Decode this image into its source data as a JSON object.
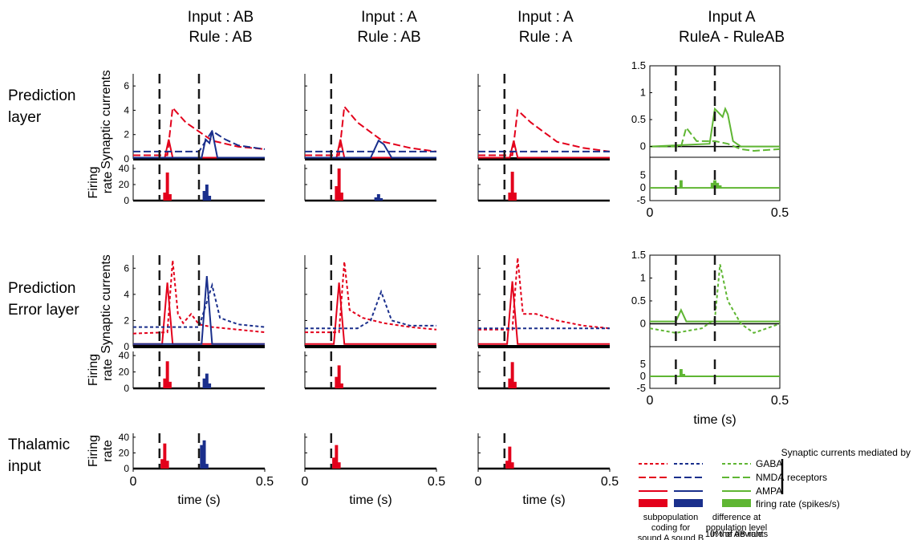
{
  "colors": {
    "red": "#e3001b",
    "blue": "#1a2f8c",
    "green": "#5fb633",
    "dashline": "#1a1a1a",
    "axis": "#000000"
  },
  "column_titles": [
    {
      "line1": "Input : AB",
      "line2": "Rule : AB"
    },
    {
      "line1": "Input : A",
      "line2": "Rule : AB"
    },
    {
      "line1": "Input : A",
      "line2": "Rule : A"
    },
    {
      "line1": "Input A",
      "line2": "RuleA - RuleAB"
    }
  ],
  "row_titles": [
    {
      "line1": "Prediction",
      "line2": "layer"
    },
    {
      "line1": "Prediction",
      "line2": "Error layer"
    },
    {
      "line1": "Thalamic",
      "line2": "input"
    }
  ],
  "axis_labels": {
    "synaptic_currents": "Synaptic currents",
    "firing_line1": "Firing",
    "firing_line2": "rate",
    "time": "time (s)"
  },
  "tick_labels": {
    "syn_y": [
      "0",
      "2",
      "4",
      "6"
    ],
    "rate_y": [
      "0",
      "20",
      "40"
    ],
    "x": [
      "0",
      "0.5"
    ],
    "diff_syn_top": [
      "0",
      "0.5",
      "1",
      "1.5"
    ],
    "diff_syn_mid": [
      "0",
      "0.5",
      "1",
      "1.5"
    ],
    "diff_rate": [
      "-5",
      "0",
      "5"
    ]
  },
  "legend": {
    "header": "Synaptic currents mediated by",
    "gaba": "GABA",
    "nmda": "NMDA",
    "ampa": "AMPA",
    "receptors": "receptors",
    "firing": "firing rate (spikes/s)",
    "subpop_lines": [
      "subpopulation",
      "coding for",
      "sound A sound B"
    ],
    "diff_lines": [
      "difference at",
      "population level",
      "10% of deviants",
      "in the AB rule"
    ]
  },
  "chart_data": [
    {
      "type": "line",
      "panel": "Prediction layer, Input AB / Rule AB",
      "x_range": [
        0,
        0.5
      ],
      "ylim_synaptic": [
        0,
        7
      ],
      "ylim_rate": [
        0,
        45
      ],
      "event_times": [
        0.1,
        0.25
      ],
      "series": [
        {
          "name": "subpopulation coding for sound A, NMDA",
          "x": [
            0,
            0.13,
            0.15,
            0.2,
            0.3,
            0.4,
            0.5
          ],
          "values": [
            0.3,
            0.3,
            4.2,
            3.0,
            1.5,
            1.0,
            0.8
          ]
        },
        {
          "name": "subpopulation coding for sound A, AMPA",
          "x": [
            0,
            0.12,
            0.135,
            0.15,
            0.5
          ],
          "values": [
            0.1,
            0.1,
            1.6,
            0.1,
            0.1
          ]
        },
        {
          "name": "subpopulation coding for sound B, NMDA",
          "x": [
            0,
            0.25,
            0.3,
            0.35,
            0.4,
            0.5
          ],
          "values": [
            0.6,
            0.6,
            2.3,
            1.6,
            1.1,
            0.8
          ]
        },
        {
          "name": "subpopulation coding for sound B, AMPA",
          "x": [
            0,
            0.26,
            0.275,
            0.29,
            0.3,
            0.32,
            0.5
          ],
          "values": [
            0.1,
            0.1,
            1.6,
            1.3,
            2.3,
            0.1,
            0.1
          ]
        },
        {
          "name": "firing rate sound A",
          "x": [
            0.12,
            0.13,
            0.14
          ],
          "values": [
            10,
            35,
            8
          ]
        },
        {
          "name": "firing rate sound B",
          "x": [
            0.27,
            0.28,
            0.29
          ],
          "values": [
            12,
            20,
            6
          ]
        }
      ]
    },
    {
      "type": "line",
      "panel": "Prediction layer, Input A / Rule AB",
      "x_range": [
        0,
        0.5
      ],
      "ylim_synaptic": [
        0,
        7
      ],
      "ylim_rate": [
        0,
        45
      ],
      "event_times": [
        0.1
      ],
      "series": [
        {
          "name": "subpopulation coding for sound A, NMDA",
          "x": [
            0,
            0.13,
            0.15,
            0.2,
            0.3,
            0.4,
            0.5
          ],
          "values": [
            0.3,
            0.3,
            4.3,
            3.0,
            1.4,
            0.9,
            0.6
          ]
        },
        {
          "name": "subpopulation coding for sound A, AMPA",
          "x": [
            0,
            0.12,
            0.135,
            0.15,
            0.5
          ],
          "values": [
            0.1,
            0.1,
            1.6,
            0.1,
            0.1
          ]
        },
        {
          "name": "subpopulation coding for sound B, NMDA",
          "x": [
            0,
            0.5
          ],
          "values": [
            0.6,
            0.6
          ]
        },
        {
          "name": "subpopulation coding for sound B, AMPA",
          "x": [
            0,
            0.25,
            0.28,
            0.3,
            0.33,
            0.5
          ],
          "values": [
            0.1,
            0.1,
            1.5,
            1.2,
            0.1,
            0.1
          ]
        },
        {
          "name": "firing rate sound A",
          "x": [
            0.12,
            0.13,
            0.14
          ],
          "values": [
            18,
            40,
            10
          ]
        },
        {
          "name": "firing rate sound B",
          "x": [
            0.27,
            0.28,
            0.29
          ],
          "values": [
            4,
            8,
            3
          ]
        }
      ]
    },
    {
      "type": "line",
      "panel": "Prediction layer, Input A / Rule A",
      "x_range": [
        0,
        0.5
      ],
      "ylim_synaptic": [
        0,
        7
      ],
      "ylim_rate": [
        0,
        45
      ],
      "event_times": [
        0.1
      ],
      "series": [
        {
          "name": "subpopulation coding for sound A, NMDA",
          "x": [
            0,
            0.13,
            0.15,
            0.2,
            0.3,
            0.4,
            0.5
          ],
          "values": [
            0.3,
            0.3,
            4.0,
            3.0,
            1.4,
            0.9,
            0.6
          ]
        },
        {
          "name": "subpopulation coding for sound A, AMPA",
          "x": [
            0,
            0.12,
            0.135,
            0.15,
            0.5
          ],
          "values": [
            0.1,
            0.1,
            1.5,
            0.1,
            0.1
          ]
        },
        {
          "name": "subpopulation coding for sound B, NMDA",
          "x": [
            0,
            0.5
          ],
          "values": [
            0.6,
            0.6
          ]
        },
        {
          "name": "firing rate sound A",
          "x": [
            0.12,
            0.13,
            0.14
          ],
          "values": [
            10,
            36,
            10
          ]
        }
      ]
    },
    {
      "type": "line",
      "panel": "Prediction layer, Input A RuleA - RuleAB",
      "x_range": [
        0,
        0.5
      ],
      "ylim_synaptic": [
        -0.2,
        1.5
      ],
      "ylim_rate": [
        -5,
        7
      ],
      "event_times": [
        0.1,
        0.25
      ],
      "series": [
        {
          "name": "difference NMDA",
          "x": [
            0,
            0.12,
            0.14,
            0.18,
            0.25,
            0.3,
            0.35,
            0.4,
            0.5
          ],
          "values": [
            0,
            0,
            0.35,
            0.1,
            0.1,
            0.05,
            -0.05,
            -0.08,
            -0.05
          ]
        },
        {
          "name": "difference AMPA",
          "x": [
            0,
            0.23,
            0.25,
            0.28,
            0.29,
            0.3,
            0.32,
            0.35,
            0.5
          ],
          "values": [
            0,
            0.05,
            0.7,
            0.55,
            0.7,
            0.6,
            0.1,
            0,
            0
          ]
        },
        {
          "name": "difference firing rate",
          "x": [
            0.12,
            0.24,
            0.25,
            0.26,
            0.27
          ],
          "values": [
            3,
            2,
            3,
            2,
            1
          ]
        }
      ]
    },
    {
      "type": "line",
      "panel": "Prediction Error layer, Input AB / Rule AB",
      "x_range": [
        0,
        0.5
      ],
      "ylim_synaptic": [
        0,
        7
      ],
      "ylim_rate": [
        0,
        45
      ],
      "event_times": [
        0.1,
        0.25
      ],
      "series": [
        {
          "name": "subpopulation coding for sound A, GABA",
          "x": [
            0,
            0.13,
            0.15,
            0.17,
            0.19,
            0.22,
            0.25,
            0.3,
            0.5
          ],
          "values": [
            1.0,
            1.1,
            6.6,
            2.5,
            1.8,
            2.5,
            1.7,
            1.5,
            1.1
          ]
        },
        {
          "name": "subpopulation coding for sound A, AMPA",
          "x": [
            0,
            0.11,
            0.13,
            0.15,
            0.5
          ],
          "values": [
            0.2,
            0.2,
            4.9,
            0.2,
            0.2
          ]
        },
        {
          "name": "subpopulation coding for sound B, GABA",
          "x": [
            0,
            0.25,
            0.3,
            0.33,
            0.4,
            0.5
          ],
          "values": [
            1.5,
            1.5,
            4.7,
            2.2,
            1.7,
            1.5
          ]
        },
        {
          "name": "subpopulation coding for sound B, AMPA",
          "x": [
            0,
            0.26,
            0.28,
            0.3,
            0.5
          ],
          "values": [
            0.2,
            0.2,
            5.4,
            0.2,
            0.2
          ]
        },
        {
          "name": "firing rate sound A",
          "x": [
            0.12,
            0.13,
            0.14
          ],
          "values": [
            12,
            33,
            8
          ]
        },
        {
          "name": "firing rate sound B",
          "x": [
            0.27,
            0.28,
            0.29
          ],
          "values": [
            12,
            18,
            6
          ]
        }
      ]
    },
    {
      "type": "line",
      "panel": "Prediction Error layer, Input A / Rule AB",
      "x_range": [
        0,
        0.5
      ],
      "ylim_synaptic": [
        0,
        7
      ],
      "ylim_rate": [
        0,
        45
      ],
      "event_times": [
        0.1
      ],
      "series": [
        {
          "name": "subpopulation coding for sound A, GABA",
          "x": [
            0,
            0.13,
            0.15,
            0.17,
            0.22,
            0.3,
            0.4,
            0.5
          ],
          "values": [
            1.1,
            1.1,
            6.5,
            2.8,
            2.2,
            1.8,
            1.5,
            1.3
          ]
        },
        {
          "name": "subpopulation coding for sound A, AMPA",
          "x": [
            0,
            0.11,
            0.13,
            0.15,
            0.5
          ],
          "values": [
            0.2,
            0.2,
            4.9,
            0.2,
            0.2
          ]
        },
        {
          "name": "subpopulation coding for sound B, GABA",
          "x": [
            0,
            0.2,
            0.25,
            0.29,
            0.33,
            0.4,
            0.5
          ],
          "values": [
            1.4,
            1.4,
            2.0,
            4.2,
            2.0,
            1.6,
            1.6
          ]
        },
        {
          "name": "firing rate sound A",
          "x": [
            0.12,
            0.13,
            0.14
          ],
          "values": [
            14,
            28,
            6
          ]
        }
      ]
    },
    {
      "type": "line",
      "panel": "Prediction Error layer, Input A / Rule A",
      "x_range": [
        0,
        0.5
      ],
      "ylim_synaptic": [
        0,
        7
      ],
      "ylim_rate": [
        0,
        45
      ],
      "event_times": [
        0.1
      ],
      "series": [
        {
          "name": "subpopulation coding for sound A, GABA",
          "x": [
            0,
            0.13,
            0.15,
            0.17,
            0.22,
            0.3,
            0.4,
            0.5
          ],
          "values": [
            1.3,
            1.3,
            6.8,
            2.5,
            2.5,
            2.0,
            1.6,
            1.4
          ]
        },
        {
          "name": "subpopulation coding for sound A, AMPA",
          "x": [
            0,
            0.11,
            0.13,
            0.15,
            0.5
          ],
          "values": [
            0.2,
            0.2,
            5.0,
            0.2,
            0.2
          ]
        },
        {
          "name": "subpopulation coding for sound B, GABA",
          "x": [
            0,
            0.5
          ],
          "values": [
            1.4,
            1.4
          ]
        },
        {
          "name": "firing rate sound A",
          "x": [
            0.12,
            0.13,
            0.14
          ],
          "values": [
            12,
            32,
            8
          ]
        }
      ]
    },
    {
      "type": "line",
      "panel": "Prediction Error layer, Input A RuleA - RuleAB",
      "x_range": [
        0,
        0.5
      ],
      "ylim_synaptic": [
        -0.5,
        1.5
      ],
      "ylim_rate": [
        -5,
        7
      ],
      "event_times": [
        0.1,
        0.25
      ],
      "series": [
        {
          "name": "difference GABA",
          "x": [
            0,
            0.1,
            0.2,
            0.25,
            0.27,
            0.3,
            0.35,
            0.4,
            0.45,
            0.5
          ],
          "values": [
            -0.1,
            -0.2,
            -0.1,
            0.1,
            1.3,
            0.5,
            0,
            -0.2,
            -0.1,
            0
          ]
        },
        {
          "name": "difference AMPA",
          "x": [
            0,
            0.1,
            0.12,
            0.14,
            0.5
          ],
          "values": [
            0.05,
            0.05,
            0.3,
            0.05,
            0.05
          ]
        },
        {
          "name": "difference firing rate",
          "x": [
            0.12,
            0.13
          ],
          "values": [
            3,
            1
          ]
        }
      ]
    },
    {
      "type": "bar",
      "panel": "Thalamic input, Input AB / Rule AB",
      "x_range": [
        0,
        0.5
      ],
      "ylim": [
        0,
        45
      ],
      "event_times": [
        0.1,
        0.25
      ],
      "series": [
        {
          "name": "firing rate sound A",
          "x": [
            0.11,
            0.12,
            0.13
          ],
          "values": [
            12,
            32,
            10
          ]
        },
        {
          "name": "firing rate sound B",
          "x": [
            0.26,
            0.27,
            0.28
          ],
          "values": [
            30,
            36,
            6
          ]
        }
      ]
    },
    {
      "type": "bar",
      "panel": "Thalamic input, Input A / Rule AB",
      "x_range": [
        0,
        0.5
      ],
      "ylim": [
        0,
        45
      ],
      "event_times": [
        0.1
      ],
      "series": [
        {
          "name": "firing rate sound A",
          "x": [
            0.11,
            0.12,
            0.13
          ],
          "values": [
            14,
            30,
            8
          ]
        }
      ]
    },
    {
      "type": "bar",
      "panel": "Thalamic input, Input A / Rule A",
      "x_range": [
        0,
        0.5
      ],
      "ylim": [
        0,
        45
      ],
      "event_times": [
        0.1
      ],
      "series": [
        {
          "name": "firing rate sound A",
          "x": [
            0.11,
            0.12,
            0.13
          ],
          "values": [
            10,
            28,
            8
          ]
        }
      ]
    }
  ]
}
